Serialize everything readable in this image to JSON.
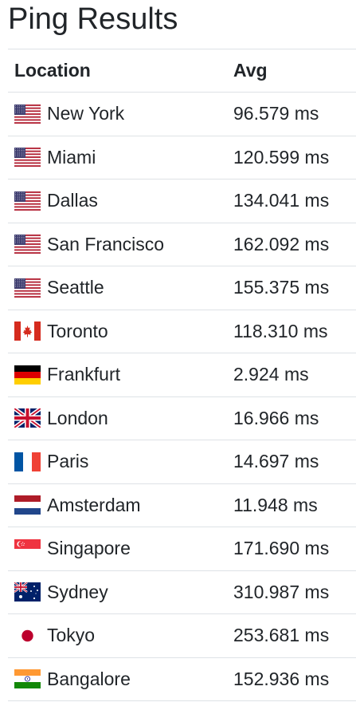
{
  "title": "Ping Results",
  "columns": {
    "location": "Location",
    "avg": "Avg"
  },
  "rows": [
    {
      "location": "New York",
      "avg": "96.579 ms",
      "flag": "us-flag-icon"
    },
    {
      "location": "Miami",
      "avg": "120.599 ms",
      "flag": "us-flag-icon"
    },
    {
      "location": "Dallas",
      "avg": "134.041 ms",
      "flag": "us-flag-icon"
    },
    {
      "location": "San Francisco",
      "avg": "162.092 ms",
      "flag": "us-flag-icon"
    },
    {
      "location": "Seattle",
      "avg": "155.375 ms",
      "flag": "us-flag-icon"
    },
    {
      "location": "Toronto",
      "avg": "118.310 ms",
      "flag": "canada-flag-icon"
    },
    {
      "location": "Frankfurt",
      "avg": "2.924 ms",
      "flag": "germany-flag-icon"
    },
    {
      "location": "London",
      "avg": "16.966 ms",
      "flag": "uk-flag-icon"
    },
    {
      "location": "Paris",
      "avg": "14.697 ms",
      "flag": "france-flag-icon"
    },
    {
      "location": "Amsterdam",
      "avg": "11.948 ms",
      "flag": "netherlands-flag-icon"
    },
    {
      "location": "Singapore",
      "avg": "171.690 ms",
      "flag": "singapore-flag-icon"
    },
    {
      "location": "Sydney",
      "avg": "310.987 ms",
      "flag": "australia-flag-icon"
    },
    {
      "location": "Tokyo",
      "avg": "253.681 ms",
      "flag": "japan-flag-icon"
    },
    {
      "location": "Bangalore",
      "avg": "152.936 ms",
      "flag": "india-flag-icon"
    }
  ]
}
